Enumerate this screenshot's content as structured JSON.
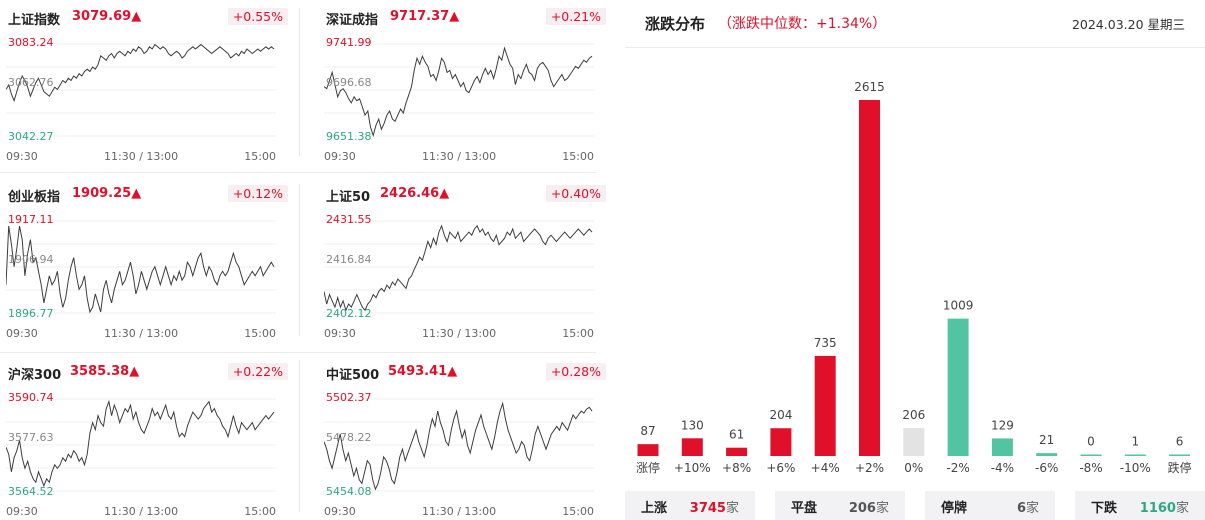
{
  "indices": [
    {
      "name": "上证指数",
      "value": "3079.69▲",
      "change": "+0.55%",
      "high": "3083.24",
      "mid": "3062.76",
      "low": "3042.27",
      "series": [
        3063,
        3065,
        3061,
        3058,
        3062,
        3066,
        3069,
        3067,
        3064,
        3060,
        3063,
        3066,
        3068,
        3065,
        3062,
        3061,
        3060,
        3062,
        3064,
        3063,
        3065,
        3067,
        3066,
        3068,
        3067,
        3069,
        3068,
        3070,
        3069,
        3071,
        3072,
        3071,
        3073,
        3072,
        3074,
        3078,
        3077,
        3076,
        3078,
        3079,
        3077,
        3079,
        3080,
        3079,
        3078,
        3080,
        3079,
        3081,
        3080,
        3082,
        3081,
        3079,
        3080,
        3082,
        3081,
        3083,
        3082,
        3081,
        3082,
        3081,
        3079,
        3078,
        3079,
        3080,
        3079,
        3077,
        3078,
        3080,
        3081,
        3082,
        3081,
        3082,
        3083,
        3082,
        3081,
        3080,
        3079,
        3080,
        3081,
        3082,
        3081,
        3080,
        3079,
        3077,
        3078,
        3079,
        3078,
        3080,
        3079,
        3081,
        3080,
        3079,
        3080,
        3081,
        3080,
        3081,
        3082,
        3081,
        3082,
        3081
      ]
    },
    {
      "name": "深证成指",
      "value": "9717.37▲",
      "change": "+0.21%",
      "high": "9741.99",
      "mid": "9696.68",
      "low": "9651.38",
      "series": [
        9700,
        9698,
        9706,
        9714,
        9702,
        9690,
        9696,
        9698,
        9694,
        9688,
        9684,
        9690,
        9686,
        9688,
        9680,
        9672,
        9676,
        9660,
        9652,
        9662,
        9668,
        9658,
        9664,
        9672,
        9676,
        9668,
        9666,
        9672,
        9678,
        9674,
        9684,
        9692,
        9700,
        9716,
        9728,
        9722,
        9730,
        9724,
        9720,
        9710,
        9712,
        9706,
        9716,
        9728,
        9724,
        9714,
        9716,
        9708,
        9712,
        9706,
        9700,
        9704,
        9696,
        9694,
        9700,
        9706,
        9710,
        9704,
        9712,
        9718,
        9712,
        9716,
        9708,
        9718,
        9730,
        9726,
        9738,
        9730,
        9722,
        9718,
        9702,
        9712,
        9708,
        9716,
        9722,
        9714,
        9712,
        9706,
        9718,
        9722,
        9724,
        9720,
        9716,
        9706,
        9700,
        9704,
        9708,
        9712,
        9706,
        9708,
        9712,
        9716,
        9720,
        9718,
        9722,
        9726,
        9724,
        9728,
        9730
      ]
    },
    {
      "name": "创业板指",
      "value": "1909.25▲",
      "change": "+0.12%",
      "high": "1917.11",
      "mid": "1906.94",
      "low": "1896.77",
      "series": [
        1903,
        1916,
        1912,
        1907,
        1911,
        1916,
        1913,
        1905,
        1910,
        1913,
        1908,
        1909,
        1906,
        1903,
        1899,
        1902,
        1905,
        1903,
        1904,
        1906,
        1901,
        1898,
        1900,
        1904,
        1907,
        1909,
        1905,
        1902,
        1903,
        1905,
        1900,
        1897,
        1898,
        1901,
        1899,
        1897,
        1902,
        1904,
        1901,
        1899,
        1902,
        1904,
        1906,
        1903,
        1904,
        1906,
        1908,
        1905,
        1901,
        1903,
        1906,
        1904,
        1902,
        1904,
        1906,
        1907,
        1905,
        1903,
        1905,
        1907,
        1905,
        1903,
        1905,
        1904,
        1906,
        1904,
        1905,
        1908,
        1907,
        1905,
        1907,
        1909,
        1910,
        1907,
        1905,
        1907,
        1906,
        1904,
        1903,
        1905,
        1906,
        1905,
        1906,
        1908,
        1910,
        1908,
        1907,
        1905,
        1903,
        1904,
        1905,
        1906,
        1905,
        1906,
        1907,
        1905,
        1906,
        1907,
        1908,
        1907
      ]
    },
    {
      "name": "上证50",
      "value": "2426.46▲",
      "change": "+0.40%",
      "high": "2431.55",
      "mid": "2416.84",
      "low": "2402.12",
      "series": [
        2409,
        2405,
        2408,
        2406,
        2404,
        2407,
        2404,
        2406,
        2403,
        2405,
        2404,
        2406,
        2408,
        2406,
        2404,
        2403,
        2405,
        2406,
        2408,
        2407,
        2409,
        2410,
        2409,
        2411,
        2410,
        2412,
        2411,
        2413,
        2412,
        2411,
        2410,
        2413,
        2414,
        2416,
        2418,
        2420,
        2419,
        2422,
        2425,
        2423,
        2426,
        2424,
        2428,
        2430,
        2427,
        2425,
        2428,
        2427,
        2426,
        2428,
        2425,
        2426,
        2427,
        2428,
        2427,
        2429,
        2430,
        2428,
        2429,
        2427,
        2428,
        2426,
        2425,
        2427,
        2424,
        2425,
        2426,
        2428,
        2427,
        2429,
        2426,
        2427,
        2428,
        2425,
        2426,
        2427,
        2428,
        2429,
        2428,
        2427,
        2425,
        2424,
        2426,
        2427,
        2426,
        2425,
        2426,
        2427,
        2428,
        2427,
        2426,
        2427,
        2428,
        2429,
        2428,
        2427,
        2428,
        2429,
        2428
      ]
    },
    {
      "name": "沪深300",
      "value": "3585.38▲",
      "change": "+0.22%",
      "high": "3590.74",
      "mid": "3577.63",
      "low": "3564.52",
      "series": [
        3577,
        3575,
        3570,
        3574,
        3576,
        3579,
        3574,
        3571,
        3573,
        3570,
        3568,
        3567,
        3570,
        3568,
        3566,
        3568,
        3567,
        3570,
        3572,
        3571,
        3572,
        3574,
        3573,
        3575,
        3574,
        3576,
        3575,
        3573,
        3574,
        3572,
        3575,
        3581,
        3584,
        3582,
        3586,
        3584,
        3583,
        3588,
        3590,
        3586,
        3589,
        3587,
        3584,
        3586,
        3588,
        3587,
        3589,
        3585,
        3587,
        3584,
        3582,
        3581,
        3583,
        3585,
        3588,
        3586,
        3587,
        3585,
        3587,
        3589,
        3586,
        3585,
        3587,
        3583,
        3580,
        3581,
        3580,
        3583,
        3585,
        3587,
        3586,
        3585,
        3586,
        3588,
        3589,
        3590,
        3587,
        3588,
        3586,
        3585,
        3583,
        3582,
        3580,
        3583,
        3586,
        3583,
        3581,
        3584,
        3583,
        3582,
        3583,
        3584,
        3582,
        3583,
        3584,
        3585,
        3586,
        3585,
        3586,
        3587
      ]
    },
    {
      "name": "中证500",
      "value": "5493.41▲",
      "change": "+0.28%",
      "high": "5502.37",
      "mid": "5478.22",
      "low": "5454.08",
      "series": [
        5480,
        5476,
        5470,
        5466,
        5472,
        5478,
        5484,
        5476,
        5470,
        5474,
        5468,
        5462,
        5466,
        5460,
        5458,
        5464,
        5470,
        5468,
        5460,
        5455,
        5458,
        5464,
        5472,
        5470,
        5466,
        5460,
        5458,
        5464,
        5472,
        5476,
        5470,
        5474,
        5478,
        5482,
        5486,
        5480,
        5476,
        5472,
        5478,
        5486,
        5492,
        5488,
        5496,
        5490,
        5486,
        5480,
        5478,
        5486,
        5492,
        5496,
        5488,
        5482,
        5486,
        5478,
        5474,
        5480,
        5486,
        5490,
        5494,
        5488,
        5484,
        5480,
        5476,
        5482,
        5490,
        5496,
        5500,
        5492,
        5486,
        5482,
        5478,
        5474,
        5476,
        5480,
        5478,
        5472,
        5470,
        5476,
        5484,
        5488,
        5484,
        5480,
        5476,
        5480,
        5484,
        5486,
        5488,
        5486,
        5490,
        5488,
        5486,
        5490,
        5494,
        5492,
        5494,
        5496,
        5495,
        5497,
        5498,
        5496
      ]
    }
  ],
  "x_axis": {
    "start": "09:30",
    "mid": "11:30 / 13:00",
    "end": "15:00"
  },
  "distribution": {
    "title": "涨跌分布",
    "median_text": "（涨跌中位数：+1.34%）",
    "date": "2024.03.20 星期三"
  },
  "chart_data": {
    "type": "bar",
    "categories": [
      "涨停",
      "+10%",
      "+8%",
      "+6%",
      "+4%",
      "+2%",
      "0%",
      "-2%",
      "-4%",
      "-6%",
      "-8%",
      "-10%",
      "跌停"
    ],
    "values": [
      87,
      130,
      61,
      204,
      735,
      2615,
      206,
      1009,
      129,
      21,
      0,
      1,
      6
    ],
    "colors": [
      "#e0102b",
      "#e0102b",
      "#e0102b",
      "#e0102b",
      "#e0102b",
      "#e0102b",
      "#e3e3e3",
      "#52c4a1",
      "#52c4a1",
      "#52c4a1",
      "#52c4a1",
      "#52c4a1",
      "#52c4a1"
    ],
    "ylim": [
      0,
      2615
    ]
  },
  "summary": [
    {
      "label": "上涨",
      "value": "3745",
      "unit": "家",
      "color": "#e0102b"
    },
    {
      "label": "平盘",
      "value": "206",
      "unit": "家",
      "color": "#555555"
    },
    {
      "label": "停牌",
      "value": "6",
      "unit": "家",
      "color": "#555555"
    },
    {
      "label": "下跌",
      "value": "1160",
      "unit": "家",
      "color": "#2ea97f"
    }
  ],
  "colors": {
    "up": "#e0102b",
    "down": "#2ea97f",
    "flat": "#e3e3e3",
    "mid_label": "#888888"
  }
}
